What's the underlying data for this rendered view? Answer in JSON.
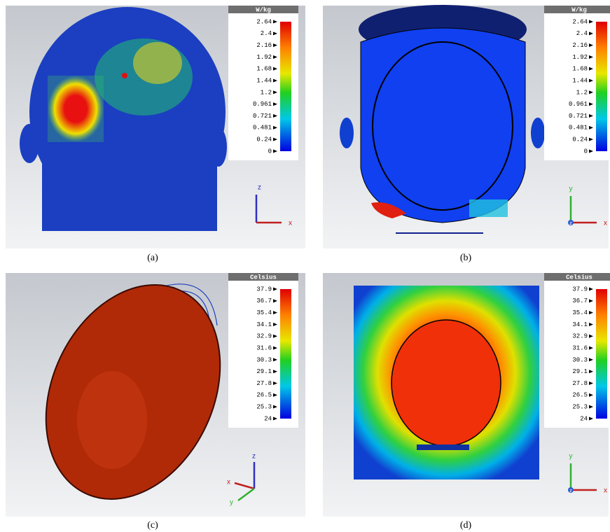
{
  "panels": [
    {
      "caption": "(a)",
      "legend": {
        "unit": "W/kg",
        "ticks": [
          "2.64",
          "2.4",
          "2.16",
          "1.92",
          "1.68",
          "1.44",
          "1.2",
          "0.961",
          "0.721",
          "0.481",
          "0.24",
          "0"
        ]
      },
      "axes": [
        "z",
        "x"
      ]
    },
    {
      "caption": "(b)",
      "legend": {
        "unit": "W/kg",
        "ticks": [
          "2.64",
          "2.4",
          "2.16",
          "1.92",
          "1.68",
          "1.44",
          "1.2",
          "0.961",
          "0.721",
          "0.481",
          "0.24",
          "0"
        ]
      },
      "axes": [
        "y",
        "z",
        "x"
      ]
    },
    {
      "caption": "(c)",
      "legend": {
        "unit": "Celsius",
        "ticks": [
          "37.9",
          "36.7",
          "35.4",
          "34.1",
          "32.9",
          "31.6",
          "30.3",
          "29.1",
          "27.8",
          "26.5",
          "25.3",
          "24"
        ]
      },
      "axes": [
        "z",
        "x",
        "y"
      ]
    },
    {
      "caption": "(d)",
      "legend": {
        "unit": "Celsius",
        "ticks": [
          "37.9",
          "36.7",
          "35.4",
          "34.1",
          "32.9",
          "31.6",
          "30.3",
          "29.1",
          "27.8",
          "26.5",
          "25.3",
          "24"
        ]
      },
      "axes": [
        "y",
        "z",
        "x"
      ]
    }
  ]
}
